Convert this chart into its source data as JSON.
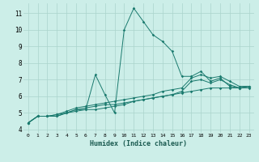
{
  "xlabel": "Humidex (Indice chaleur)",
  "bg_color": "#cceee8",
  "grid_color": "#aad4cc",
  "line_color": "#1a7a6e",
  "xlim": [
    -0.5,
    23.5
  ],
  "ylim": [
    3.8,
    11.6
  ],
  "xticks": [
    0,
    1,
    2,
    3,
    4,
    5,
    6,
    7,
    8,
    9,
    10,
    11,
    12,
    13,
    14,
    15,
    16,
    17,
    18,
    19,
    20,
    21,
    22,
    23
  ],
  "yticks": [
    4,
    5,
    6,
    7,
    8,
    9,
    10,
    11
  ],
  "lines": [
    [
      4.4,
      4.8,
      4.8,
      4.8,
      5.0,
      5.2,
      5.2,
      7.3,
      6.1,
      5.0,
      10.0,
      11.3,
      10.5,
      9.7,
      9.3,
      8.7,
      7.2,
      7.2,
      7.5,
      6.9,
      7.1,
      6.6,
      6.5,
      6.6
    ],
    [
      4.4,
      4.8,
      4.8,
      4.8,
      5.0,
      5.1,
      5.2,
      5.2,
      5.3,
      5.4,
      5.5,
      5.7,
      5.8,
      5.9,
      6.0,
      6.1,
      6.2,
      6.3,
      6.4,
      6.5,
      6.5,
      6.5,
      6.5,
      6.5
    ],
    [
      4.4,
      4.8,
      4.8,
      4.9,
      5.0,
      5.2,
      5.3,
      5.4,
      5.5,
      5.5,
      5.6,
      5.7,
      5.8,
      5.9,
      6.0,
      6.1,
      6.3,
      6.9,
      7.0,
      6.8,
      7.0,
      6.7,
      6.5,
      6.6
    ],
    [
      4.4,
      4.8,
      4.8,
      4.9,
      5.1,
      5.3,
      5.4,
      5.5,
      5.6,
      5.7,
      5.8,
      5.9,
      6.0,
      6.1,
      6.3,
      6.4,
      6.5,
      7.1,
      7.3,
      7.1,
      7.2,
      6.9,
      6.6,
      6.6
    ]
  ]
}
